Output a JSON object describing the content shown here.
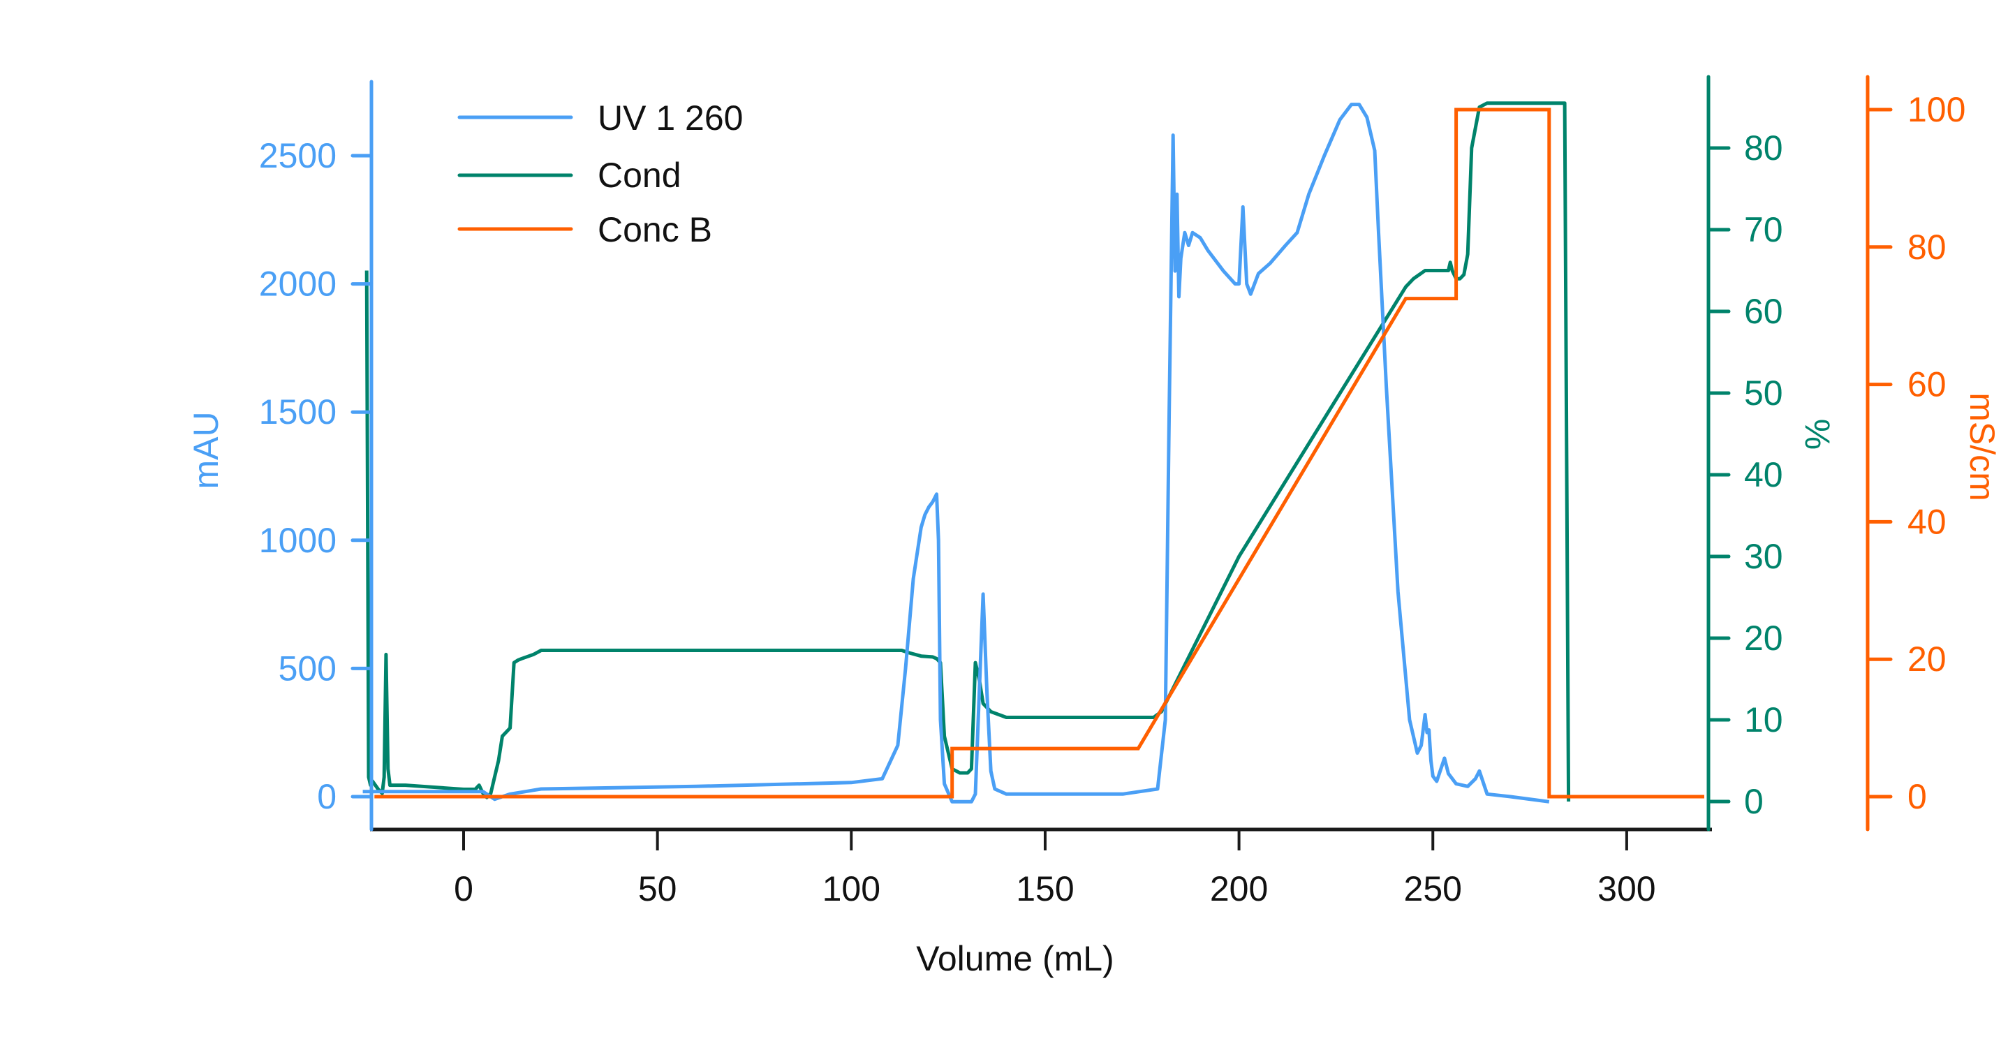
{
  "chart_data": {
    "type": "line",
    "title": "",
    "xlabel": "Volume (mL)",
    "xlim": [
      -26,
      320
    ],
    "xticks": [
      0,
      50,
      100,
      150,
      200,
      250,
      300
    ],
    "legend": {
      "position": "upper-left",
      "entries": [
        "UV 1 260",
        "Cond",
        "Conc B"
      ]
    },
    "grid": false,
    "axes": [
      {
        "id": "left",
        "label": "mAU",
        "color": "#4a9ff5",
        "ylim": [
          -130,
          2800
        ],
        "ticks": [
          0,
          500,
          1000,
          1500,
          2000,
          2500
        ]
      },
      {
        "id": "right1",
        "label": "%",
        "color": "#00836b",
        "ylim": [
          -3,
          88
        ],
        "ticks": [
          0,
          10,
          20,
          30,
          40,
          50,
          60,
          70,
          80
        ]
      },
      {
        "id": "right2",
        "label": "mS/cm",
        "color": "#ff5f00",
        "ylim": [
          -5,
          104
        ],
        "ticks": [
          0,
          20,
          40,
          60,
          80,
          100
        ]
      }
    ],
    "series": [
      {
        "name": "UV 1 260",
        "axis": "left",
        "color": "#4a9ff5",
        "x": [
          -26,
          -25,
          -24,
          -23,
          -20,
          5,
          8,
          12,
          20,
          60,
          100,
          108,
          112,
          114,
          116,
          118,
          119,
          120,
          121,
          122,
          122.5,
          123,
          124,
          126,
          127,
          131,
          132,
          133,
          134,
          135,
          136,
          137,
          140,
          150,
          170,
          179,
          181,
          182,
          183,
          183.5,
          184,
          184.5,
          185,
          186,
          187,
          188,
          190,
          192,
          196,
          199,
          200,
          201,
          202,
          203,
          205,
          208,
          212,
          215,
          218,
          222,
          226,
          229,
          231,
          233,
          235,
          236,
          238,
          241,
          244,
          246,
          247,
          248,
          248.5,
          249,
          249.5,
          250,
          251,
          253,
          254,
          256,
          259,
          261,
          262,
          264,
          270,
          280
        ],
        "y": [
          20,
          20,
          20,
          20,
          20,
          20,
          -10,
          10,
          30,
          40,
          55,
          70,
          200,
          500,
          850,
          1050,
          1100,
          1130,
          1150,
          1180,
          1000,
          300,
          50,
          -20,
          -20,
          -20,
          10,
          400,
          790,
          400,
          100,
          30,
          10,
          10,
          10,
          30,
          300,
          1500,
          2580,
          2050,
          2350,
          1950,
          2100,
          2200,
          2150,
          2200,
          2180,
          2130,
          2050,
          2000,
          2000,
          2300,
          2000,
          1960,
          2040,
          2080,
          2150,
          2200,
          2350,
          2500,
          2640,
          2700,
          2700,
          2650,
          2520,
          2200,
          1600,
          800,
          300,
          170,
          200,
          320,
          250,
          260,
          140,
          80,
          60,
          150,
          90,
          50,
          40,
          70,
          100,
          10,
          0,
          -20
        ]
      },
      {
        "name": "Cond",
        "axis": "right1",
        "color": "#00836b",
        "x": [
          -25,
          -24.5,
          -24,
          -23.5,
          -22,
          -21,
          -20.5,
          -20,
          -19.5,
          -19,
          -15,
          0,
          3,
          4,
          5,
          6,
          7,
          8,
          9,
          10,
          12,
          13,
          14,
          15,
          18,
          20,
          25,
          60,
          100,
          113,
          115,
          118,
          121,
          122,
          123,
          124,
          126,
          128,
          130,
          131,
          132,
          133,
          134,
          136,
          140,
          150,
          170,
          178,
          180,
          200,
          243,
          245,
          248,
          252,
          254,
          254.5,
          255,
          256,
          257,
          258,
          259,
          260,
          262,
          264,
          270,
          283,
          284,
          285
        ],
        "y": [
          65,
          3,
          2,
          2.5,
          1.5,
          1,
          3,
          18,
          4,
          2,
          2,
          1.5,
          1.5,
          2,
          1,
          0.5,
          1,
          3,
          5,
          8,
          9,
          17,
          17.3,
          17.5,
          18,
          18.5,
          18.5,
          18.5,
          18.5,
          18.5,
          18.2,
          17.8,
          17.7,
          17.5,
          17,
          8,
          4,
          3.5,
          3.5,
          4,
          17,
          15,
          12,
          11,
          10.3,
          10.3,
          10.3,
          10.3,
          11,
          30,
          63,
          64,
          65,
          65,
          65,
          66,
          65,
          64,
          64,
          64.5,
          67,
          80,
          85,
          85.5,
          85.5,
          85.5,
          85.5,
          0
        ]
      },
      {
        "name": "Conc B",
        "axis": "right2",
        "color": "#ff5f00",
        "x": [
          -23,
          126,
          126,
          174,
          243,
          256,
          256,
          280,
          280,
          320
        ],
        "y": [
          0,
          0,
          7,
          7,
          72.5,
          72.5,
          100,
          100,
          0,
          0
        ]
      }
    ]
  }
}
